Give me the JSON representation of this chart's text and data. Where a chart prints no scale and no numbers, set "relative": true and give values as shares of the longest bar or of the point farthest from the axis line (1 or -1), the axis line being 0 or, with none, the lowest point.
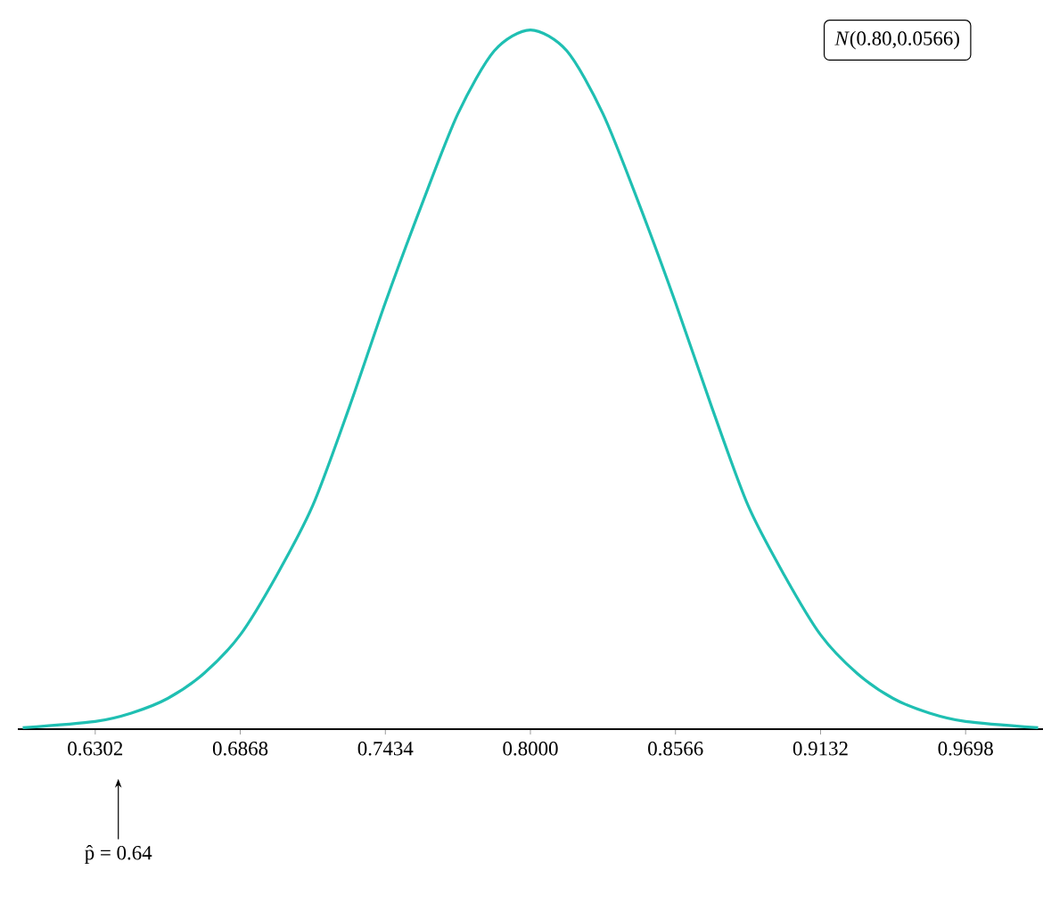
{
  "chart_data": {
    "type": "line",
    "relative": true,
    "line_style": "solid",
    "marker": "none",
    "grid": false,
    "xlim": [
      0.6,
      1.0
    ],
    "xticks": [
      0.6302,
      0.6868,
      0.7434,
      {
        "value": 0.8,
        "label": "0.8000"
      },
      0.8566,
      0.9132,
      0.9698
    ],
    "series": [
      {
        "color": "#1fbfb2",
        "x": [
          0.6019,
          0.6302,
          0.6443,
          0.6585,
          0.6727,
          0.6868,
          0.701,
          0.7151,
          0.7293,
          0.7434,
          0.7576,
          0.7717,
          0.7859,
          0.8,
          0.8142,
          0.8283,
          0.8425,
          0.8566,
          0.8708,
          0.8849,
          0.8991,
          0.9132,
          0.9274,
          0.9415,
          0.9557,
          0.9698,
          0.9981
        ],
        "values": [
          0.002,
          0.011,
          0.023,
          0.044,
          0.08,
          0.135,
          0.22,
          0.32,
          0.46,
          0.61,
          0.75,
          0.88,
          0.97,
          1,
          0.97,
          0.88,
          0.75,
          0.61,
          0.46,
          0.32,
          0.22,
          0.135,
          0.08,
          0.044,
          0.023,
          0.011,
          0.002
        ]
      }
    ],
    "annotations": [
      "*N*(0.80,0.0566)",
      "p̂ = 0.64"
    ]
  }
}
